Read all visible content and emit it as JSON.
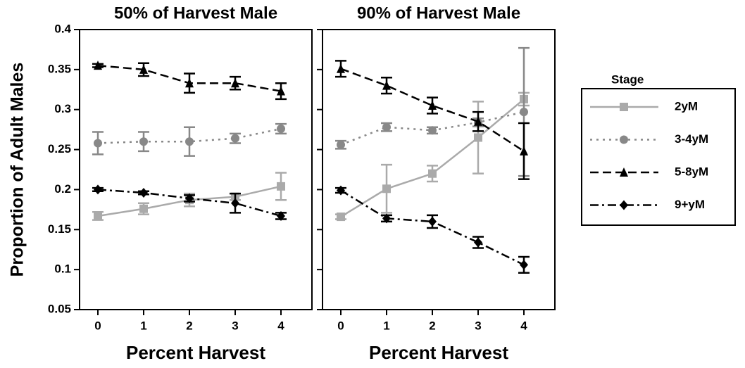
{
  "chart_data": [
    {
      "type": "line",
      "title": "50% of Harvest Male",
      "xlabel": "Percent Harvest",
      "ylabel": "Proportion of Adult Males",
      "legend_title": "Stage",
      "categories": [
        "0",
        "1",
        "2",
        "3",
        "4"
      ],
      "ylim": [
        0.05,
        0.4
      ],
      "yticks": [
        0.05,
        0.1,
        0.15,
        0.2,
        0.25,
        0.3,
        0.35,
        0.4
      ],
      "series": [
        {
          "name": "2yM",
          "color": "#aaaaaa",
          "dash": "solid",
          "marker": "square",
          "values": [
            0.167,
            0.176,
            0.187,
            0.191,
            0.204
          ],
          "errors": [
            0.005,
            0.007,
            0.008,
            0.004,
            0.017
          ]
        },
        {
          "name": "3-4yM",
          "color": "#888888",
          "dash": "dotted",
          "marker": "circle",
          "values": [
            0.258,
            0.26,
            0.26,
            0.264,
            0.276
          ],
          "errors": [
            0.014,
            0.012,
            0.018,
            0.006,
            0.006
          ]
        },
        {
          "name": "5-8yM",
          "color": "#000000",
          "dash": "dashed",
          "marker": "triangle",
          "values": [
            0.355,
            0.35,
            0.333,
            0.333,
            0.323
          ],
          "errors": [
            0.002,
            0.008,
            0.012,
            0.008,
            0.01
          ]
        },
        {
          "name": "9+yM",
          "color": "#000000",
          "dash": "dashdot",
          "marker": "diamond",
          "values": [
            0.2,
            0.196,
            0.189,
            0.183,
            0.167
          ],
          "errors": [
            0.002,
            0.002,
            0.004,
            0.012,
            0.004
          ]
        }
      ]
    },
    {
      "type": "line",
      "title": "90% of Harvest Male",
      "xlabel": "Percent Harvest",
      "categories": [
        "0",
        "1",
        "2",
        "3",
        "4"
      ],
      "ylim": [
        0.05,
        0.4
      ],
      "yticks": [
        0.05,
        0.1,
        0.15,
        0.2,
        0.25,
        0.3,
        0.35,
        0.4
      ],
      "series": [
        {
          "color": "#aaaaaa",
          "dash": "solid",
          "marker": "square",
          "values": [
            0.166,
            0.201,
            0.22,
            0.265,
            0.313
          ],
          "errors": [
            0.003,
            0.03,
            0.01,
            0.045,
            0.008
          ]
        },
        {
          "color": "#888888",
          "dash": "dotted",
          "marker": "circle",
          "values": [
            0.256,
            0.278,
            0.274,
            0.284,
            0.297
          ],
          "errors": [
            0.005,
            0.005,
            0.004,
            0.005,
            0.08
          ]
        },
        {
          "color": "#000000",
          "dash": "dashed",
          "marker": "triangle",
          "values": [
            0.351,
            0.33,
            0.305,
            0.285,
            0.248
          ],
          "errors": [
            0.01,
            0.01,
            0.01,
            0.012,
            0.035
          ]
        },
        {
          "color": "#000000",
          "dash": "dashdot",
          "marker": "diamond",
          "values": [
            0.199,
            0.164,
            0.16,
            0.134,
            0.106
          ],
          "errors": [
            0.003,
            0.004,
            0.008,
            0.007,
            0.01
          ]
        }
      ]
    }
  ]
}
